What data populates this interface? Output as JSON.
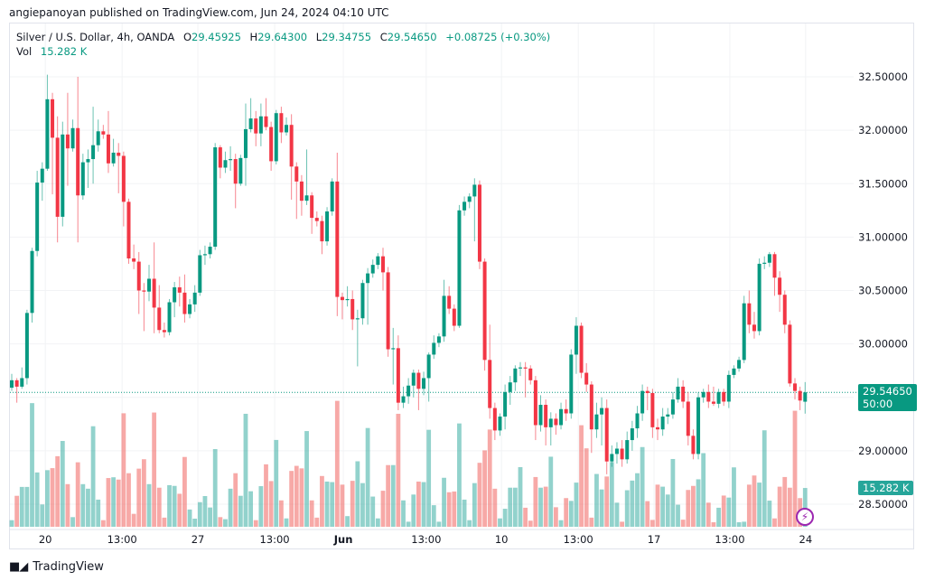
{
  "header": {
    "published": "angiepanoyan published on TradingView.com, Jun 24, 2024 04:10 UTC"
  },
  "legend": {
    "symbol": "Silver / U.S. Dollar, 4h, OANDA",
    "open_label": "O",
    "open": "29.45925",
    "high_label": "H",
    "high": "29.64300",
    "low_label": "L",
    "low": "29.34755",
    "close_label": "C",
    "close": "29.54650",
    "change": "+0.08725 (+0.30%)",
    "vol_label": "Vol",
    "vol": "15.282 K"
  },
  "price_tag": {
    "price": "29.54650",
    "countdown": "50:00"
  },
  "volume_tag": "15.282 K",
  "footer": {
    "brand": "TradingView"
  },
  "colors": {
    "up": "#089981",
    "down": "#f23645",
    "vol_up": "#26a69a",
    "vol_down": "#ef5350",
    "indicator": "#9c27b0"
  },
  "chart_data": {
    "type": "candlestick",
    "title": "Silver / U.S. Dollar, 4h, OANDA",
    "ylim": [
      28.3,
      32.7
    ],
    "current_price": 29.5465,
    "y_ticks": [
      "32.50000",
      "32.00000",
      "31.50000",
      "31.00000",
      "30.50000",
      "30.00000",
      "29.00000",
      "28.50000"
    ],
    "x_ticks": [
      {
        "label": "20",
        "index": 6.6,
        "bold": false
      },
      {
        "label": "13:00",
        "index": 21.7,
        "bold": false
      },
      {
        "label": "27",
        "index": 36.6,
        "bold": false
      },
      {
        "label": "13:00",
        "index": 51.7,
        "bold": false
      },
      {
        "label": "Jun",
        "index": 65.2,
        "bold": true
      },
      {
        "label": "13:00",
        "index": 81.5,
        "bold": false
      },
      {
        "label": "10",
        "index": 96.3,
        "bold": false
      },
      {
        "label": "13:00",
        "index": 111.4,
        "bold": false
      },
      {
        "label": "17",
        "index": 126.3,
        "bold": false
      },
      {
        "label": "13:00",
        "index": 141.2,
        "bold": false
      },
      {
        "label": "24",
        "index": 156.1,
        "bold": false
      }
    ],
    "volume_unit": "K",
    "candles_ohlcv": [
      [
        29.59,
        29.72,
        29.56,
        29.66,
        2.6
      ],
      [
        29.66,
        29.68,
        29.45,
        29.6,
        12.2
      ],
      [
        29.6,
        29.78,
        29.58,
        29.68,
        15.7
      ],
      [
        29.68,
        30.32,
        29.62,
        30.29,
        15.7
      ],
      [
        30.29,
        30.9,
        30.2,
        30.87,
        48.7
      ],
      [
        30.87,
        31.62,
        30.82,
        31.51,
        21.4
      ],
      [
        31.51,
        31.7,
        31.34,
        31.64,
        8.8
      ],
      [
        31.64,
        32.52,
        31.62,
        32.29,
        22.3
      ],
      [
        32.29,
        32.35,
        31.4,
        31.93,
        23.1
      ],
      [
        31.93,
        32.13,
        30.95,
        31.19,
        27.8
      ],
      [
        31.19,
        32.08,
        31.1,
        31.96,
        33.8
      ],
      [
        31.96,
        32.35,
        31.48,
        31.83,
        16.8
      ],
      [
        31.83,
        32.1,
        31.8,
        32.02,
        3.8
      ],
      [
        32.02,
        32.5,
        30.95,
        31.39,
        25.4
      ],
      [
        31.39,
        31.78,
        31.35,
        31.7,
        16.8
      ],
      [
        31.7,
        31.82,
        31.46,
        31.73,
        15.0
      ],
      [
        31.73,
        32.22,
        31.5,
        31.86,
        39.6
      ],
      [
        31.86,
        32.1,
        31.8,
        31.99,
        10.7
      ],
      [
        31.99,
        32.05,
        31.92,
        31.96,
        2.6
      ],
      [
        31.96,
        32.18,
        31.6,
        31.69,
        19.2
      ],
      [
        31.69,
        31.92,
        31.66,
        31.79,
        19.5
      ],
      [
        31.79,
        31.88,
        31.41,
        31.76,
        18.6
      ],
      [
        31.76,
        31.8,
        31.1,
        31.33,
        44.7
      ],
      [
        31.33,
        31.36,
        30.75,
        30.8,
        21.1
      ],
      [
        30.8,
        30.93,
        30.7,
        30.77,
        5.1
      ],
      [
        30.77,
        30.86,
        30.28,
        30.5,
        22.9
      ],
      [
        30.5,
        30.57,
        30.12,
        30.49,
        26.6
      ],
      [
        30.49,
        30.74,
        30.4,
        30.61,
        16.8
      ],
      [
        30.61,
        30.95,
        30.1,
        30.34,
        45.0
      ],
      [
        30.34,
        30.55,
        30.1,
        30.13,
        15.4
      ],
      [
        30.13,
        30.2,
        30.06,
        30.11,
        3.6
      ],
      [
        30.11,
        30.42,
        30.08,
        30.39,
        16.4
      ],
      [
        30.39,
        30.58,
        30.25,
        30.53,
        16.1
      ],
      [
        30.53,
        30.63,
        30.35,
        30.48,
        13.0
      ],
      [
        30.48,
        30.65,
        30.2,
        30.28,
        27.5
      ],
      [
        30.28,
        30.42,
        30.24,
        30.37,
        6.8
      ],
      [
        30.37,
        30.55,
        30.3,
        30.48,
        3.2
      ],
      [
        30.48,
        30.88,
        30.45,
        30.83,
        9.7
      ],
      [
        30.83,
        30.92,
        30.74,
        30.84,
        12.1
      ],
      [
        30.84,
        30.95,
        30.8,
        30.91,
        7.6
      ],
      [
        30.91,
        31.88,
        30.88,
        31.84,
        30.6
      ],
      [
        31.84,
        31.86,
        31.55,
        31.65,
        3.8
      ],
      [
        31.65,
        31.8,
        31.6,
        31.72,
        3.0
      ],
      [
        31.72,
        31.85,
        31.62,
        31.73,
        15.0
      ],
      [
        31.73,
        31.78,
        31.27,
        31.5,
        21.1
      ],
      [
        31.5,
        31.77,
        31.48,
        31.74,
        12.2
      ],
      [
        31.74,
        32.25,
        31.48,
        32.01,
        44.5
      ],
      [
        32.01,
        32.3,
        31.98,
        32.11,
        14.0
      ],
      [
        32.11,
        32.18,
        31.85,
        31.97,
        2.6
      ],
      [
        31.97,
        32.25,
        31.85,
        32.13,
        16.0
      ],
      [
        32.13,
        32.3,
        32.0,
        32.03,
        24.6
      ],
      [
        32.03,
        32.08,
        31.62,
        31.71,
        18.0
      ],
      [
        31.71,
        32.19,
        31.68,
        32.16,
        34.2
      ],
      [
        32.16,
        32.22,
        31.88,
        31.98,
        10.4
      ],
      [
        31.98,
        32.12,
        31.95,
        32.05,
        3.3
      ],
      [
        32.05,
        32.15,
        31.35,
        31.66,
        22.0
      ],
      [
        31.66,
        31.7,
        31.17,
        31.52,
        24.0
      ],
      [
        31.52,
        31.58,
        31.2,
        31.34,
        23.0
      ],
      [
        31.34,
        31.82,
        31.3,
        31.39,
        37.7
      ],
      [
        31.39,
        31.42,
        31.03,
        31.18,
        10.4
      ],
      [
        31.18,
        31.24,
        31.1,
        31.15,
        3.6
      ],
      [
        31.15,
        31.2,
        30.84,
        30.96,
        20.0
      ],
      [
        30.96,
        31.28,
        30.92,
        31.24,
        17.8
      ],
      [
        31.24,
        31.55,
        31.2,
        31.52,
        17.6
      ],
      [
        31.52,
        31.79,
        30.26,
        30.44,
        49.6
      ],
      [
        30.44,
        30.48,
        30.23,
        30.41,
        16.6
      ],
      [
        30.41,
        30.54,
        30.35,
        30.42,
        4.2
      ],
      [
        30.42,
        30.5,
        30.13,
        30.23,
        18.1
      ],
      [
        30.23,
        30.32,
        29.79,
        30.24,
        25.8
      ],
      [
        30.24,
        30.6,
        30.18,
        30.57,
        17.2
      ],
      [
        30.57,
        30.71,
        30.18,
        30.66,
        38.9
      ],
      [
        30.66,
        30.79,
        30.62,
        30.74,
        11.9
      ],
      [
        30.74,
        30.85,
        30.7,
        30.82,
        3.3
      ],
      [
        30.82,
        30.9,
        30.5,
        30.67,
        14.2
      ],
      [
        30.67,
        30.72,
        29.88,
        29.95,
        24.3
      ],
      [
        29.95,
        30.15,
        29.62,
        29.96,
        24.3
      ],
      [
        29.96,
        30.08,
        29.38,
        29.45,
        44.5
      ],
      [
        29.45,
        29.6,
        29.4,
        29.51,
        10.4
      ],
      [
        29.51,
        29.68,
        29.44,
        29.61,
        2.0
      ],
      [
        29.61,
        29.76,
        29.5,
        29.73,
        12.7
      ],
      [
        29.73,
        29.76,
        29.38,
        29.58,
        17.8
      ],
      [
        29.58,
        29.74,
        29.52,
        29.68,
        17.6
      ],
      [
        29.68,
        29.92,
        29.46,
        29.9,
        38.2
      ],
      [
        29.9,
        30.08,
        29.86,
        30.01,
        8.5
      ],
      [
        30.01,
        30.1,
        29.97,
        30.07,
        2.0
      ],
      [
        30.07,
        30.6,
        30.02,
        30.45,
        19.3
      ],
      [
        30.45,
        30.54,
        30.28,
        30.33,
        13.6
      ],
      [
        30.33,
        30.37,
        30.12,
        30.17,
        13.9
      ],
      [
        30.17,
        31.3,
        30.15,
        31.25,
        40.7
      ],
      [
        31.25,
        31.38,
        31.2,
        31.33,
        10.7
      ],
      [
        31.33,
        31.41,
        31.27,
        31.38,
        2.6
      ],
      [
        31.38,
        31.55,
        30.96,
        31.49,
        17.2
      ],
      [
        31.49,
        31.53,
        30.7,
        30.77,
        25.2
      ],
      [
        30.77,
        30.8,
        29.75,
        29.85,
        30.1
      ],
      [
        29.85,
        30.18,
        29.3,
        29.4,
        38.3
      ],
      [
        29.4,
        29.45,
        29.1,
        29.19,
        15.0
      ],
      [
        29.19,
        29.35,
        29.14,
        29.32,
        3.3
      ],
      [
        29.32,
        29.62,
        29.2,
        29.55,
        7.1
      ],
      [
        29.55,
        29.7,
        29.43,
        29.64,
        15.4
      ],
      [
        29.64,
        29.8,
        29.56,
        29.77,
        15.4
      ],
      [
        29.77,
        29.83,
        29.7,
        29.78,
        23.5
      ],
      [
        29.78,
        29.83,
        29.5,
        29.77,
        7.5
      ],
      [
        29.77,
        29.8,
        29.62,
        29.66,
        2.4
      ],
      [
        29.66,
        29.7,
        29.1,
        29.24,
        19.6
      ],
      [
        29.24,
        29.52,
        29.18,
        29.43,
        15.4
      ],
      [
        29.43,
        29.48,
        29.05,
        29.22,
        15.8
      ],
      [
        29.22,
        29.36,
        29.05,
        29.3,
        27.6
      ],
      [
        29.3,
        29.35,
        29.15,
        29.24,
        7.7
      ],
      [
        29.24,
        29.45,
        29.2,
        29.39,
        2.6
      ],
      [
        29.39,
        29.48,
        29.28,
        29.35,
        11.3
      ],
      [
        29.35,
        29.95,
        29.3,
        29.9,
        10.2
      ],
      [
        29.9,
        30.25,
        29.72,
        30.17,
        17.4
      ],
      [
        30.17,
        30.2,
        29.68,
        29.73,
        40.0
      ],
      [
        29.73,
        29.82,
        29.55,
        29.62,
        30.9
      ],
      [
        29.62,
        29.65,
        28.98,
        29.2,
        3.6
      ],
      [
        29.2,
        29.45,
        29.12,
        29.34,
        20.8
      ],
      [
        29.34,
        29.5,
        29.05,
        29.4,
        14.7
      ],
      [
        29.4,
        29.48,
        28.78,
        28.9,
        19.8
      ],
      [
        28.9,
        29.05,
        28.85,
        28.97,
        25.5
      ],
      [
        28.97,
        29.08,
        28.88,
        29.02,
        9.5
      ],
      [
        29.02,
        29.1,
        28.85,
        28.92,
        2.0
      ],
      [
        28.92,
        29.18,
        28.88,
        29.1,
        14.4
      ],
      [
        29.1,
        29.28,
        29.0,
        29.21,
        18.2
      ],
      [
        29.21,
        29.42,
        29.12,
        29.35,
        21.1
      ],
      [
        29.35,
        29.62,
        29.28,
        29.56,
        31.4
      ],
      [
        29.56,
        29.6,
        29.38,
        29.54,
        10.1
      ],
      [
        29.54,
        29.58,
        29.12,
        29.22,
        2.7
      ],
      [
        29.22,
        29.3,
        29.1,
        29.2,
        16.6
      ],
      [
        29.2,
        29.4,
        29.14,
        29.32,
        15.8
      ],
      [
        29.32,
        29.4,
        29.25,
        29.34,
        12.7
      ],
      [
        29.34,
        29.55,
        29.3,
        29.48,
        26.7
      ],
      [
        29.48,
        29.68,
        29.45,
        29.6,
        8.7
      ],
      [
        29.6,
        29.66,
        29.4,
        29.46,
        2.8
      ],
      [
        29.46,
        29.55,
        29.05,
        29.14,
        14.5
      ],
      [
        29.14,
        29.2,
        28.92,
        28.97,
        16.1
      ],
      [
        28.97,
        29.55,
        28.92,
        29.5,
        18.7
      ],
      [
        29.5,
        29.58,
        29.45,
        29.55,
        29.0
      ],
      [
        29.55,
        29.62,
        29.4,
        29.46,
        9.5
      ],
      [
        29.46,
        29.6,
        29.42,
        29.44,
        1.8
      ],
      [
        29.44,
        29.58,
        29.4,
        29.55,
        7.5
      ],
      [
        29.55,
        29.58,
        29.42,
        29.46,
        12.3
      ],
      [
        29.46,
        29.75,
        29.4,
        29.71,
        11.5
      ],
      [
        29.71,
        29.8,
        29.68,
        29.77,
        23.4
      ],
      [
        29.77,
        29.88,
        29.74,
        29.85,
        1.8
      ],
      [
        29.85,
        30.45,
        29.82,
        30.38,
        2.0
      ],
      [
        30.38,
        30.5,
        30.1,
        30.18,
        16.6
      ],
      [
        30.18,
        30.3,
        30.05,
        30.12,
        20.2
      ],
      [
        30.12,
        30.8,
        30.08,
        30.75,
        17.4
      ],
      [
        30.75,
        30.82,
        30.7,
        30.76,
        38.0
      ],
      [
        30.76,
        30.86,
        30.72,
        30.84,
        10.3
      ],
      [
        30.84,
        30.86,
        30.45,
        30.62,
        3.3
      ],
      [
        30.62,
        30.68,
        30.3,
        30.46,
        15.8
      ],
      [
        30.46,
        30.5,
        30.1,
        30.18,
        19.6
      ],
      [
        30.18,
        30.22,
        29.6,
        29.63,
        15.4
      ],
      [
        29.63,
        29.68,
        29.48,
        29.56,
        45.7
      ],
      [
        29.56,
        29.6,
        29.38,
        29.47,
        11.3
      ],
      [
        29.45925,
        29.643,
        29.34755,
        29.5465,
        15.282
      ]
    ]
  }
}
